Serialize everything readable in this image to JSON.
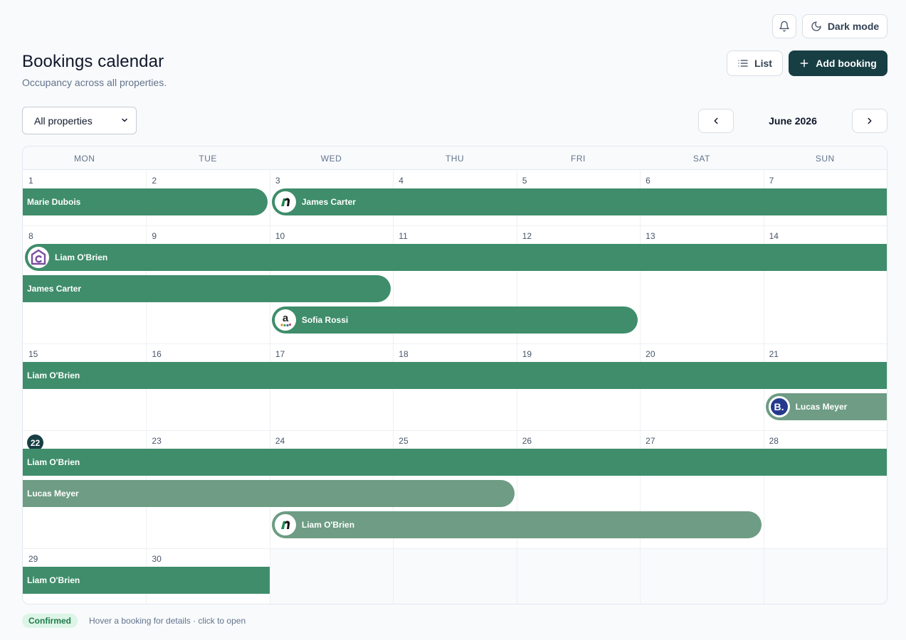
{
  "header": {
    "title": "Bookings calendar",
    "subtitle": "Occupancy across all properties.",
    "dark_mode_label": "Dark mode",
    "list_label": "List",
    "add_booking_label": "Add booking"
  },
  "filters": {
    "property_select_value": "All properties"
  },
  "nav": {
    "month_label": "June 2026"
  },
  "calendar": {
    "weekdays": [
      "MON",
      "TUE",
      "WED",
      "THU",
      "FRI",
      "SAT",
      "SUN"
    ],
    "weeks": [
      [
        "1",
        "2",
        "3",
        "4",
        "5",
        "6",
        "7"
      ],
      [
        "8",
        "9",
        "10",
        "11",
        "12",
        "13",
        "14"
      ],
      [
        "15",
        "16",
        "17",
        "18",
        "19",
        "20",
        "21"
      ],
      [
        "22",
        "23",
        "24",
        "25",
        "26",
        "27",
        "28"
      ],
      [
        "29",
        "30",
        "",
        "",
        "",
        "",
        ""
      ]
    ],
    "today": "22",
    "bookings": [
      {
        "guest": "Marie Dubois",
        "status": "confirmed",
        "logo": null
      },
      {
        "guest": "James Carter",
        "status": "confirmed",
        "logo": "airbnb-style-icon"
      },
      {
        "guest": "Liam O'Brien",
        "status": "confirmed",
        "logo": "house-c-icon"
      },
      {
        "guest": "James Carter",
        "status": "confirmed",
        "logo": null
      },
      {
        "guest": "Sofia Rossi",
        "status": "confirmed",
        "logo": "amazon-a-icon"
      },
      {
        "guest": "Liam O'Brien",
        "status": "confirmed",
        "logo": null
      },
      {
        "guest": "Lucas Meyer",
        "status": "pending",
        "logo": "booking-b-icon"
      },
      {
        "guest": "Liam O'Brien",
        "status": "confirmed",
        "logo": null
      },
      {
        "guest": "Lucas Meyer",
        "status": "pending",
        "logo": null
      },
      {
        "guest": "Liam O'Brien",
        "status": "pending",
        "logo": "airbnb-style-icon"
      },
      {
        "guest": "Liam O'Brien",
        "status": "confirmed",
        "logo": null
      }
    ]
  },
  "legend": {
    "badge": "Confirmed",
    "hint": "Hover a booking for details · click to open"
  },
  "colors": {
    "primary": "#173e43",
    "confirmed": "#3f8d6b",
    "pending": "#6e9c84"
  }
}
